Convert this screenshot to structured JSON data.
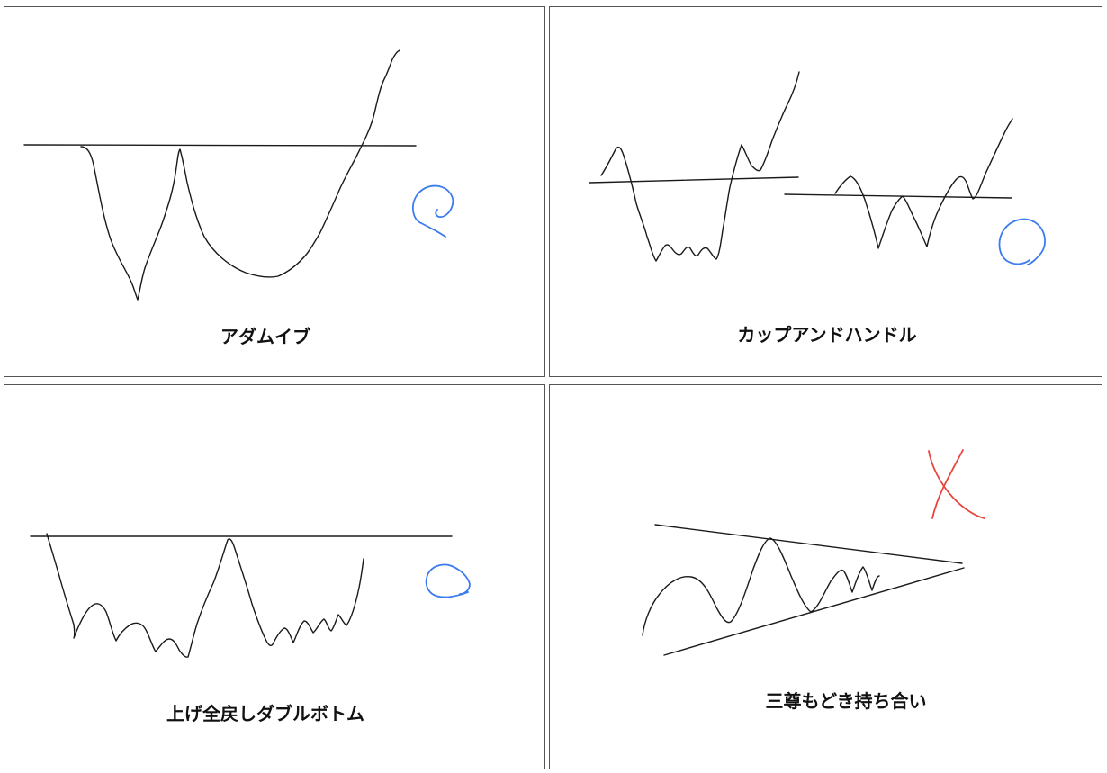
{
  "panels": [
    {
      "caption": "アダムイブ",
      "verdict": "ok",
      "mark_color": "#3b7bf0"
    },
    {
      "caption": "カップアンドハンドル",
      "verdict": "ok",
      "mark_color": "#3b7bf0"
    },
    {
      "caption": "上げ全戻しダブルボトム",
      "verdict": "ok",
      "mark_color": "#3b7bf0"
    },
    {
      "caption": "三尊もどき持ち合い",
      "verdict": "ng",
      "mark_color": "#e8453c"
    }
  ]
}
